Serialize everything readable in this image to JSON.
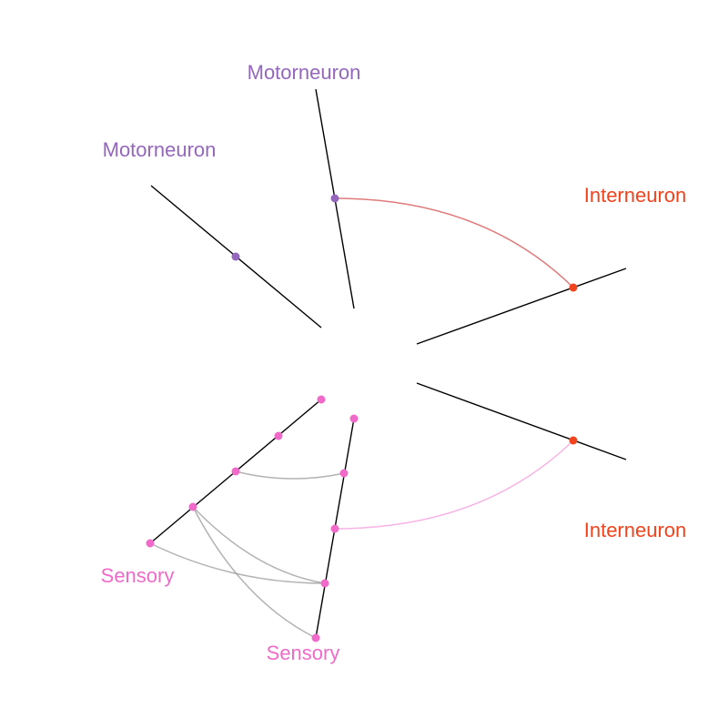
{
  "colors": {
    "motorneuron": "#9467bd",
    "interneuron": "#f0441e",
    "sensory": "#f06ac9",
    "axis": "#000000",
    "edge_motor_inter": "#e07a7a",
    "edge_sensory_inter": "#f7b4e4",
    "edge_sensory_sensory": "#999999"
  },
  "axes": [
    {
      "id": "motor-a",
      "label": "Motorneuron",
      "type": "motorneuron"
    },
    {
      "id": "motor-b",
      "label": "Motorneuron",
      "type": "motorneuron"
    },
    {
      "id": "inter-a",
      "label": "Interneuron",
      "type": "interneuron"
    },
    {
      "id": "inter-b",
      "label": "Interneuron",
      "type": "interneuron"
    },
    {
      "id": "sensory-a",
      "label": "Sensory",
      "type": "sensory"
    },
    {
      "id": "sensory-b",
      "label": "Sensory",
      "type": "sensory"
    }
  ],
  "nodes": [
    {
      "id": "m1",
      "axis": "motor-a"
    },
    {
      "id": "m2",
      "axis": "motor-b"
    },
    {
      "id": "i1",
      "axis": "inter-a"
    },
    {
      "id": "i2",
      "axis": "inter-b"
    },
    {
      "id": "sa1",
      "axis": "sensory-a"
    },
    {
      "id": "sa2",
      "axis": "sensory-a"
    },
    {
      "id": "sa3",
      "axis": "sensory-a"
    },
    {
      "id": "sa4",
      "axis": "sensory-a"
    },
    {
      "id": "sa5",
      "axis": "sensory-a"
    },
    {
      "id": "sb1",
      "axis": "sensory-b"
    },
    {
      "id": "sb2",
      "axis": "sensory-b"
    },
    {
      "id": "sb3",
      "axis": "sensory-b"
    },
    {
      "id": "sb4",
      "axis": "sensory-b"
    },
    {
      "id": "sb5",
      "axis": "sensory-b"
    }
  ],
  "edges": [
    {
      "from": "m2",
      "to": "i1",
      "kind": "edge_motor_inter"
    },
    {
      "from": "sb3",
      "to": "i2",
      "kind": "edge_sensory_inter"
    },
    {
      "from": "sa3",
      "to": "sb2",
      "kind": "edge_sensory_sensory"
    },
    {
      "from": "sa4",
      "to": "sb4",
      "kind": "edge_sensory_sensory"
    },
    {
      "from": "sa4",
      "to": "sb5",
      "kind": "edge_sensory_sensory"
    },
    {
      "from": "sa5",
      "to": "sb4",
      "kind": "edge_sensory_sensory"
    }
  ]
}
